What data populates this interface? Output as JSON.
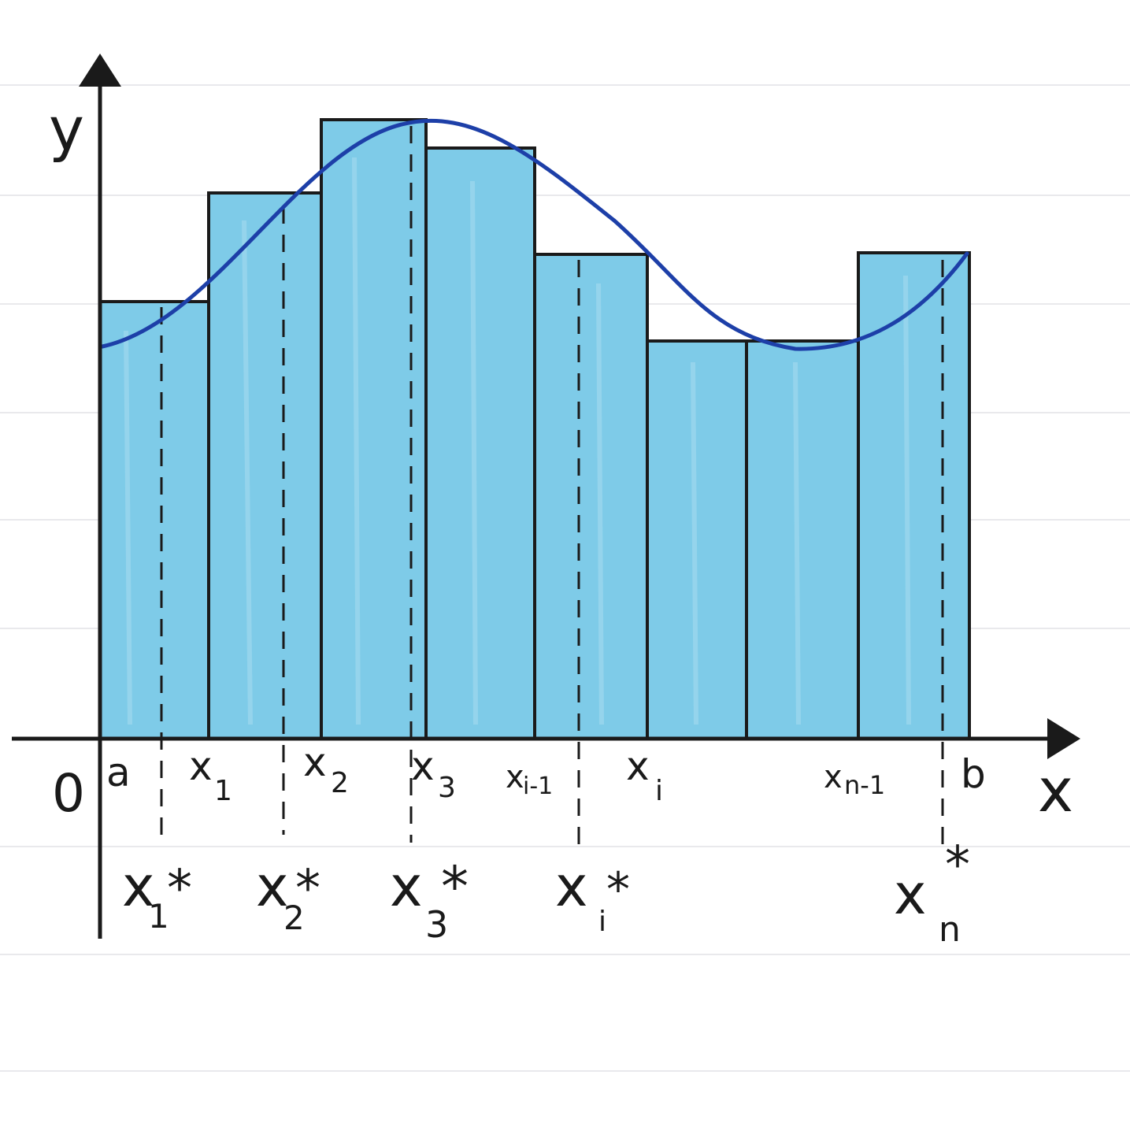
{
  "colors": {
    "paper": "#ffffff",
    "rule_line": "#e9e9ec",
    "fill": "#6cc2e4",
    "fill_light": "#a8dcf0",
    "ink": "#1a1a1a",
    "curve": "#1d3fa8"
  },
  "axes": {
    "y_label": "y",
    "x_label": "x",
    "origin_label": "0"
  },
  "partition_labels": {
    "a": "a",
    "x1": "x",
    "x1_sub": "1",
    "x2": "x",
    "x2_sub": "2",
    "x3": "x",
    "x3_sub": "3",
    "xi_minus_1": "x",
    "xi_minus_1_sub": "i-1",
    "xi": "x",
    "xi_sub": "i",
    "xn_minus_1": "x",
    "xn_minus_1_sub": "n-1",
    "b": "b"
  },
  "sample_labels": {
    "s1": "x",
    "s1_sub": "1",
    "s1_sup": "*",
    "s2": "x",
    "s2_sub": "2",
    "s2_sup": "*",
    "s3": "x",
    "s3_sub": "3",
    "s3_sup": "*",
    "si": "x",
    "si_sub": "i",
    "si_sup": "*",
    "sn": "x",
    "sn_sub": "n",
    "sn_sup": "*"
  },
  "rectangle_count": 8
}
